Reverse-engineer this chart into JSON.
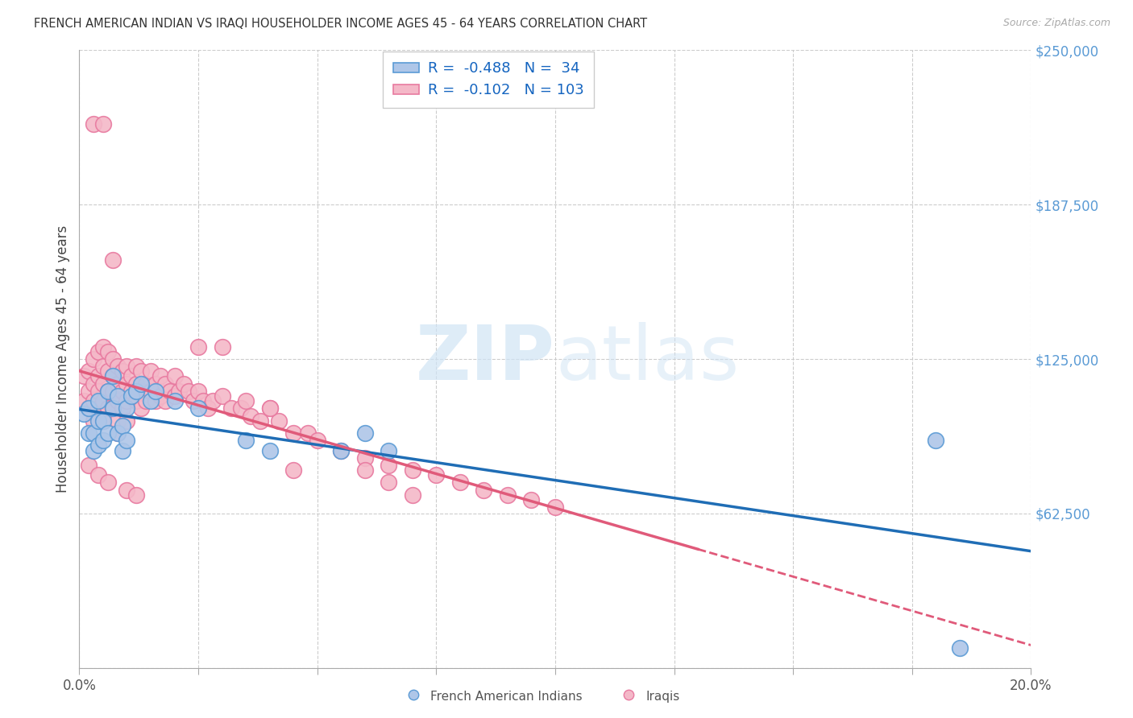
{
  "title": "FRENCH AMERICAN INDIAN VS IRAQI HOUSEHOLDER INCOME AGES 45 - 64 YEARS CORRELATION CHART",
  "source": "Source: ZipAtlas.com",
  "ylabel": "Householder Income Ages 45 - 64 years",
  "xlim": [
    0.0,
    0.2
  ],
  "ylim": [
    0,
    250000
  ],
  "yticks": [
    0,
    62500,
    125000,
    187500,
    250000
  ],
  "ytick_labels": [
    "",
    "$62,500",
    "$125,000",
    "$187,500",
    "$250,000"
  ],
  "xticks": [
    0.0,
    0.025,
    0.05,
    0.075,
    0.1,
    0.125,
    0.15,
    0.175,
    0.2
  ],
  "legend_r_blue": "-0.488",
  "legend_n_blue": "34",
  "legend_r_pink": "-0.102",
  "legend_n_pink": "103",
  "blue_color": "#aec6e8",
  "blue_edge": "#5b9bd5",
  "pink_color": "#f4b8c8",
  "pink_edge": "#e87aa0",
  "blue_line_color": "#1f6db5",
  "pink_line_color": "#e05a7a",
  "watermark_color": "#d0e4f5",
  "background_color": "#ffffff",
  "blue_scatter_x": [
    0.001,
    0.002,
    0.002,
    0.003,
    0.003,
    0.004,
    0.004,
    0.004,
    0.005,
    0.005,
    0.006,
    0.006,
    0.007,
    0.007,
    0.008,
    0.008,
    0.009,
    0.009,
    0.01,
    0.01,
    0.011,
    0.012,
    0.013,
    0.015,
    0.016,
    0.02,
    0.025,
    0.035,
    0.04,
    0.055,
    0.06,
    0.065,
    0.18,
    0.185
  ],
  "blue_scatter_y": [
    103000,
    95000,
    105000,
    88000,
    95000,
    100000,
    90000,
    108000,
    92000,
    100000,
    112000,
    95000,
    105000,
    118000,
    95000,
    110000,
    88000,
    98000,
    92000,
    105000,
    110000,
    112000,
    115000,
    108000,
    112000,
    108000,
    105000,
    92000,
    88000,
    88000,
    95000,
    88000,
    92000,
    8000
  ],
  "pink_scatter_x": [
    0.001,
    0.001,
    0.002,
    0.002,
    0.002,
    0.003,
    0.003,
    0.003,
    0.003,
    0.004,
    0.004,
    0.004,
    0.004,
    0.005,
    0.005,
    0.005,
    0.005,
    0.005,
    0.006,
    0.006,
    0.006,
    0.006,
    0.007,
    0.007,
    0.007,
    0.007,
    0.008,
    0.008,
    0.008,
    0.008,
    0.008,
    0.009,
    0.009,
    0.009,
    0.01,
    0.01,
    0.01,
    0.01,
    0.011,
    0.011,
    0.012,
    0.012,
    0.012,
    0.013,
    0.013,
    0.013,
    0.014,
    0.014,
    0.015,
    0.015,
    0.016,
    0.016,
    0.017,
    0.017,
    0.018,
    0.018,
    0.019,
    0.02,
    0.02,
    0.021,
    0.022,
    0.023,
    0.024,
    0.025,
    0.026,
    0.027,
    0.028,
    0.03,
    0.032,
    0.034,
    0.036,
    0.038,
    0.04,
    0.042,
    0.045,
    0.048,
    0.05,
    0.055,
    0.06,
    0.065,
    0.07,
    0.075,
    0.08,
    0.085,
    0.09,
    0.095,
    0.1,
    0.003,
    0.005,
    0.007,
    0.025,
    0.03,
    0.035,
    0.04,
    0.045,
    0.002,
    0.004,
    0.006,
    0.01,
    0.012,
    0.06,
    0.065,
    0.07
  ],
  "pink_scatter_y": [
    118000,
    108000,
    120000,
    112000,
    105000,
    125000,
    115000,
    108000,
    100000,
    128000,
    118000,
    112000,
    105000,
    130000,
    122000,
    115000,
    108000,
    100000,
    128000,
    120000,
    112000,
    105000,
    125000,
    118000,
    112000,
    105000,
    122000,
    115000,
    108000,
    100000,
    95000,
    120000,
    112000,
    105000,
    122000,
    115000,
    108000,
    100000,
    118000,
    112000,
    122000,
    115000,
    108000,
    120000,
    112000,
    105000,
    115000,
    108000,
    120000,
    112000,
    115000,
    108000,
    118000,
    110000,
    115000,
    108000,
    112000,
    118000,
    110000,
    112000,
    115000,
    112000,
    108000,
    112000,
    108000,
    105000,
    108000,
    110000,
    105000,
    105000,
    102000,
    100000,
    105000,
    100000,
    95000,
    95000,
    92000,
    88000,
    85000,
    82000,
    80000,
    78000,
    75000,
    72000,
    70000,
    68000,
    65000,
    220000,
    220000,
    165000,
    130000,
    130000,
    108000,
    105000,
    80000,
    82000,
    78000,
    75000,
    72000,
    70000,
    80000,
    75000,
    70000
  ]
}
